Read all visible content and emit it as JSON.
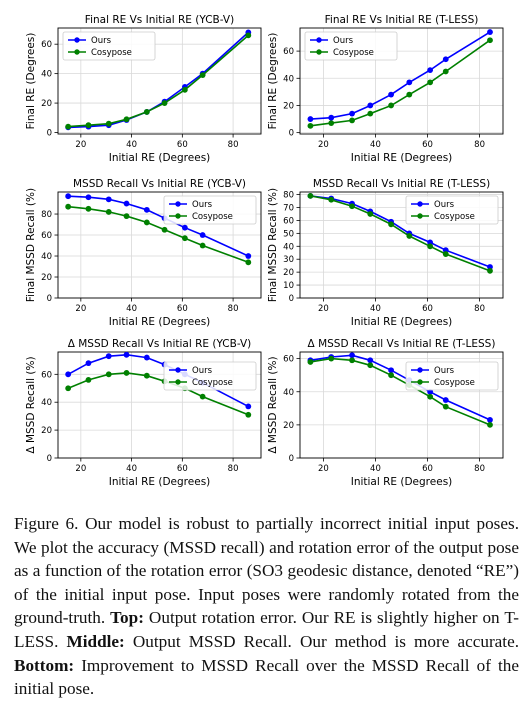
{
  "colors": {
    "ours": "#0000ff",
    "cosypose": "#008000"
  },
  "chart_data": [
    {
      "type": "line",
      "title": "Final RE Vs Initial RE (YCB-V)",
      "xlabel": "Initial RE (Degrees)",
      "ylabel": "Final RE (Degrees)",
      "xlim": [
        11,
        91
      ],
      "ylim": [
        -1,
        71
      ],
      "xticks": [
        20,
        40,
        60,
        80
      ],
      "yticks": [
        0,
        20,
        40,
        60
      ],
      "legend": "top-left",
      "grid": true,
      "series": [
        {
          "name": "Ours",
          "x": [
            15,
            23,
            31,
            38,
            46,
            53,
            61,
            68,
            86
          ],
          "y": [
            3.5,
            4,
            5,
            8.5,
            14,
            21,
            31,
            40,
            68
          ]
        },
        {
          "name": "Cosypose",
          "x": [
            15,
            23,
            31,
            38,
            46,
            53,
            61,
            68,
            86
          ],
          "y": [
            4,
            5,
            6,
            9,
            14,
            20,
            29,
            39,
            66
          ]
        }
      ]
    },
    {
      "type": "line",
      "title": "Final RE Vs Initial RE (T-LESS)",
      "xlabel": "Initial RE (Degrees)",
      "ylabel": "Final RE (Degrees)",
      "xlim": [
        11,
        89
      ],
      "ylim": [
        -1,
        77
      ],
      "xticks": [
        20,
        40,
        60,
        80
      ],
      "yticks": [
        0,
        20,
        40,
        60
      ],
      "legend": "top-left",
      "grid": true,
      "series": [
        {
          "name": "Ours",
          "x": [
            15,
            23,
            31,
            38,
            46,
            53,
            61,
            67,
            84
          ],
          "y": [
            10,
            11,
            14,
            20,
            28,
            37,
            46,
            54,
            74
          ]
        },
        {
          "name": "Cosypose",
          "x": [
            15,
            23,
            31,
            38,
            46,
            53,
            61,
            67,
            84
          ],
          "y": [
            5,
            7,
            9,
            14,
            20,
            28,
            37,
            45,
            68
          ]
        }
      ]
    },
    {
      "type": "line",
      "title": "MSSD Recall Vs Initial RE (YCB-V)",
      "xlabel": "Initial RE (Degrees)",
      "ylabel": "Final MSSD Recall (%)",
      "xlim": [
        11,
        91
      ],
      "ylim": [
        0,
        101
      ],
      "xticks": [
        20,
        40,
        60,
        80
      ],
      "yticks": [
        0,
        20,
        40,
        60,
        80
      ],
      "legend": "top-right",
      "grid": true,
      "series": [
        {
          "name": "Ours",
          "x": [
            15,
            23,
            31,
            38,
            46,
            53,
            61,
            68,
            86
          ],
          "y": [
            97,
            96,
            94,
            90,
            84,
            76,
            67,
            60,
            40
          ]
        },
        {
          "name": "Cosypose",
          "x": [
            15,
            23,
            31,
            38,
            46,
            53,
            61,
            68,
            86
          ],
          "y": [
            87,
            85,
            82,
            78,
            72,
            65,
            57,
            50,
            34
          ]
        }
      ]
    },
    {
      "type": "line",
      "title": "MSSD Recall Vs Initial RE (T-LESS)",
      "xlabel": "Initial RE (Degrees)",
      "ylabel": "Final MSSD Recall (%)",
      "xlim": [
        11,
        89
      ],
      "ylim": [
        0,
        82
      ],
      "xticks": [
        20,
        40,
        60,
        80
      ],
      "yticks": [
        0,
        10,
        20,
        30,
        40,
        50,
        60,
        70,
        80
      ],
      "legend": "top-right",
      "grid": true,
      "series": [
        {
          "name": "Ours",
          "x": [
            15,
            23,
            31,
            38,
            46,
            53,
            61,
            67,
            84
          ],
          "y": [
            79,
            77,
            73,
            67,
            59,
            50,
            43,
            37,
            24
          ]
        },
        {
          "name": "Cosypose",
          "x": [
            15,
            23,
            31,
            38,
            46,
            53,
            61,
            67,
            84
          ],
          "y": [
            79,
            76,
            71,
            65,
            57,
            48,
            40,
            34,
            21
          ]
        }
      ]
    },
    {
      "type": "line",
      "title": "Δ MSSD Recall Vs Initial RE (YCB-V)",
      "xlabel": "Initial RE (Degrees)",
      "ylabel": "Δ MSSD Recall (%)",
      "xlim": [
        11,
        91
      ],
      "ylim": [
        0,
        76
      ],
      "xticks": [
        20,
        40,
        60,
        80
      ],
      "yticks": [
        0,
        20,
        40,
        60
      ],
      "legend": "right",
      "grid": true,
      "series": [
        {
          "name": "Ours",
          "x": [
            15,
            23,
            31,
            38,
            46,
            53,
            61,
            68,
            86
          ],
          "y": [
            60,
            68,
            73,
            74,
            72,
            67,
            60,
            54,
            37
          ]
        },
        {
          "name": "Cosypose",
          "x": [
            15,
            23,
            31,
            38,
            46,
            53,
            61,
            68,
            86
          ],
          "y": [
            50,
            56,
            60,
            61,
            59,
            55,
            50,
            44,
            31
          ]
        }
      ]
    },
    {
      "type": "line",
      "title": "Δ MSSD Recall Vs Initial RE (T-LESS)",
      "xlabel": "Initial RE (Degrees)",
      "ylabel": "Δ MSSD Recall (%)",
      "xlim": [
        11,
        89
      ],
      "ylim": [
        0,
        64
      ],
      "xticks": [
        20,
        40,
        60,
        80
      ],
      "yticks": [
        0,
        20,
        40,
        60
      ],
      "legend": "right",
      "grid": true,
      "series": [
        {
          "name": "Ours",
          "x": [
            15,
            23,
            31,
            38,
            46,
            53,
            61,
            67,
            84
          ],
          "y": [
            59,
            61,
            62,
            59,
            53,
            47,
            40,
            35,
            23
          ]
        },
        {
          "name": "Cosypose",
          "x": [
            15,
            23,
            31,
            38,
            46,
            53,
            61,
            67,
            84
          ],
          "y": [
            58,
            60,
            59,
            56,
            50,
            44,
            37,
            31,
            20
          ]
        }
      ]
    }
  ],
  "caption": {
    "lead": "Figure 6. Our model is robust to partially incorrect initial input poses. We plot the accuracy (MSSD recall) and rotation error of the output pose as a function of the rotation error (SO3 geodesic distance, denoted “RE”) of the initial input pose. Input poses were randomly rotated from the ground-truth. ",
    "top_label": "Top:",
    "top_text": " Output rotation error. Our RE is slightly higher on T-LESS. ",
    "middle_label": "Middle:",
    "middle_text": " Output MSSD Recall. Our method is more accurate. ",
    "bottom_label": "Bottom:",
    "bottom_text": " Improvement to MSSD Recall over the MSSD Recall of the initial pose."
  }
}
